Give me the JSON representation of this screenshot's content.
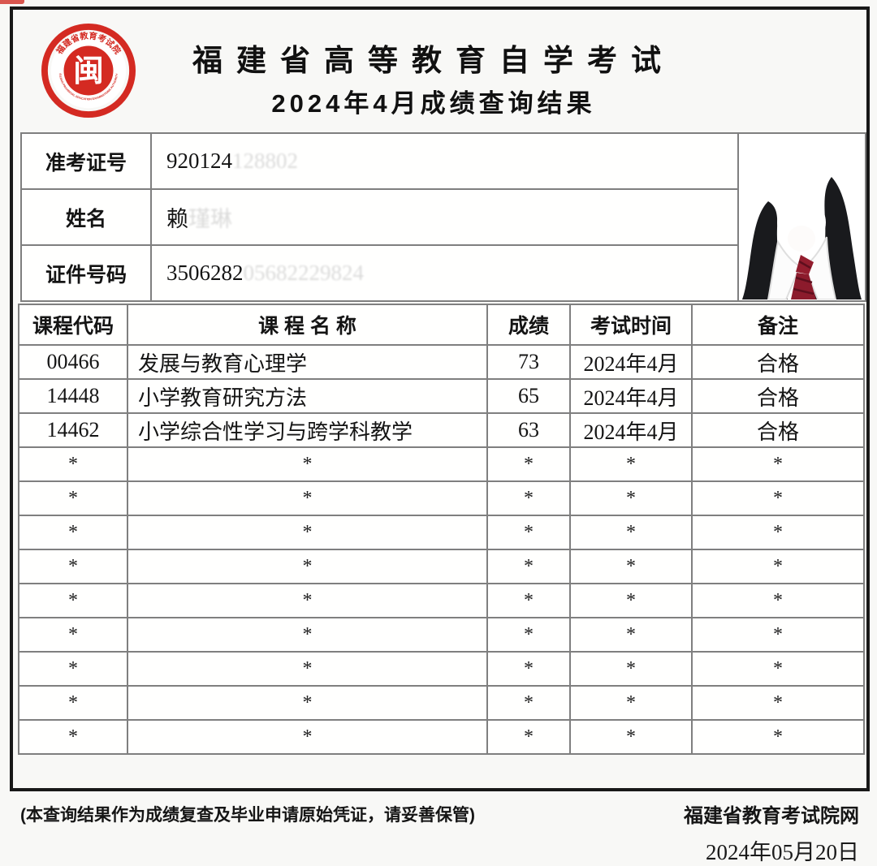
{
  "page": {
    "accent_red": "#d42a22",
    "frame_color": "#181818",
    "table_border_color": "#7f7f7f",
    "background": "#f8f8f6"
  },
  "header": {
    "title_line1": "福建省高等教育自学考试",
    "title_line2": "2024年4月成绩查询结果",
    "seal": {
      "ring_text_top": "福建省教育考试院",
      "ring_text_bottom": "FUJIAN PROVINCIAL EDUCATION EXAMINATIONS AUTHORITY",
      "center_glyph": "闽"
    }
  },
  "student": {
    "fields": [
      {
        "label": "准考证号",
        "value_visible": "920124",
        "value_masked": "128802"
      },
      {
        "label": "姓名",
        "value_visible": "赖",
        "value_masked": "瑾琳"
      },
      {
        "label": "证件号码",
        "value_visible": "3506282",
        "value_masked": "05682229824"
      }
    ],
    "photo_alt": "portrait-photo"
  },
  "scores": {
    "columns": [
      "课程代码",
      "课 程 名 称",
      "成绩",
      "考试时间",
      "备注"
    ],
    "rows": [
      {
        "code": "00466",
        "name": "发展与教育心理学",
        "score": "73",
        "exam_time": "2024年4月",
        "remark": "合格"
      },
      {
        "code": "14448",
        "name": "小学教育研究方法",
        "score": "65",
        "exam_time": "2024年4月",
        "remark": "合格"
      },
      {
        "code": "14462",
        "name": "小学综合性学习与跨学科教学",
        "score": "63",
        "exam_time": "2024年4月",
        "remark": "合格"
      }
    ],
    "empty_row_placeholder": "*",
    "empty_row_count": 9
  },
  "footer": {
    "note": "(本查询结果作为成绩复查及毕业申请原始凭证，请妥善保管)",
    "source": "福建省教育考试院网",
    "date": "2024年05月20日"
  }
}
